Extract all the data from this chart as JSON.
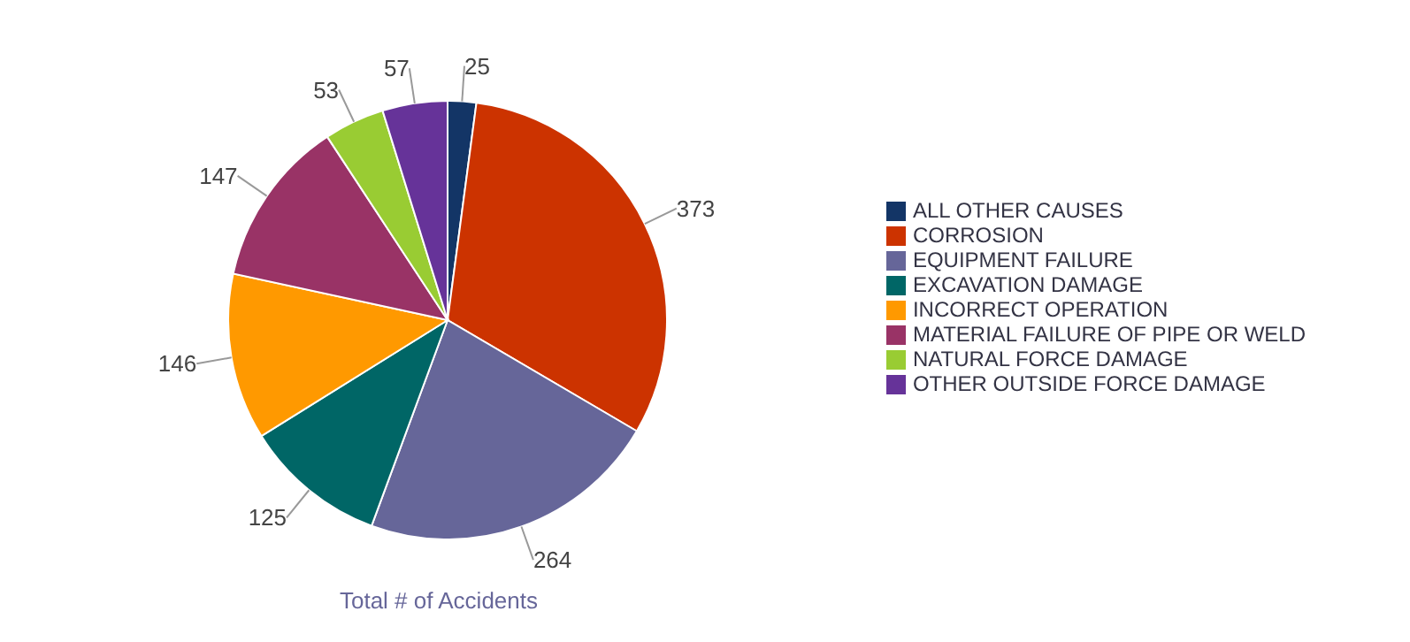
{
  "chart_data": {
    "type": "pie",
    "title": "Total # of Accidents",
    "categories": [
      "ALL OTHER CAUSES",
      "CORROSION",
      "EQUIPMENT FAILURE",
      "EXCAVATION DAMAGE",
      "INCORRECT OPERATION",
      "MATERIAL FAILURE OF PIPE OR WELD",
      "NATURAL FORCE DAMAGE",
      "OTHER OUTSIDE FORCE DAMAGE"
    ],
    "values": [
      25,
      373,
      264,
      125,
      146,
      147,
      53,
      57
    ],
    "colors": [
      "#133566",
      "#cc3300",
      "#666699",
      "#006666",
      "#ff9900",
      "#993366",
      "#99cc33",
      "#663399"
    ],
    "data_labels": true,
    "legend": "right"
  }
}
